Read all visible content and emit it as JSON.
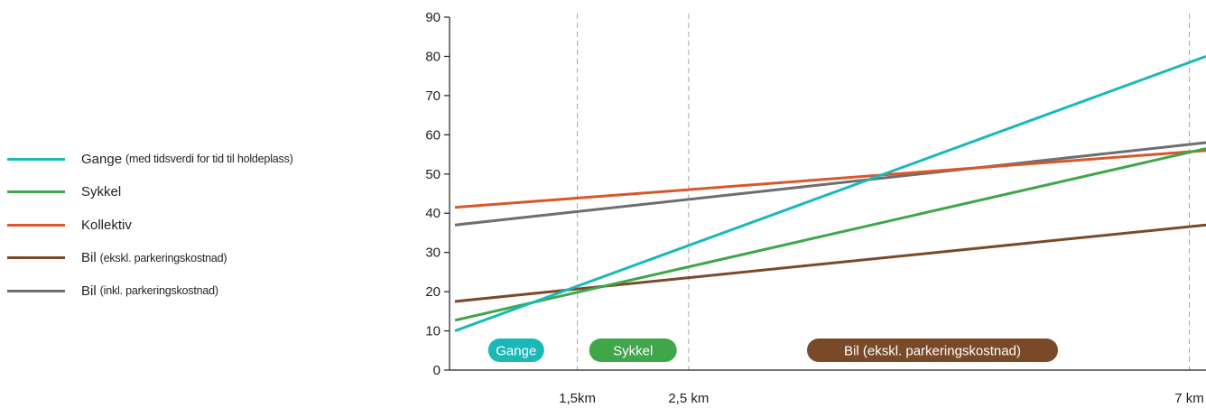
{
  "chart_data": {
    "type": "line",
    "x_unit": "km",
    "ylim": [
      0,
      90
    ],
    "yticks": [
      0,
      10,
      20,
      30,
      40,
      50,
      60,
      70,
      80,
      90
    ],
    "grid": false,
    "legend_placement": "left",
    "series": [
      {
        "name": "Gange",
        "note": "(med tidsverdi for tid til holdeplass)",
        "color": "#1bb8b8",
        "points": [
          [
            0.4,
            10
          ],
          [
            7.15,
            80
          ]
        ]
      },
      {
        "name": "Sykkel",
        "note": "",
        "color": "#3fa64a",
        "points": [
          [
            0.4,
            12.7
          ],
          [
            7.15,
            56.5
          ]
        ]
      },
      {
        "name": "Kollektiv",
        "note": "",
        "color": "#d9572b",
        "points": [
          [
            0.4,
            41.5
          ],
          [
            7.15,
            56
          ]
        ]
      },
      {
        "name": "Bil",
        "note": "(ekskl. parkeringskostnad)",
        "color": "#7a4a28",
        "points": [
          [
            0.4,
            17.5
          ],
          [
            7.15,
            37
          ]
        ]
      },
      {
        "name": "Bil",
        "note": "(inkl. parkeringskostnad)",
        "color": "#6d6e71",
        "points": [
          [
            0.4,
            37
          ],
          [
            7.15,
            58
          ]
        ]
      }
    ],
    "x_markers": [
      {
        "x": 1.5,
        "label": "1,5km"
      },
      {
        "x": 2.5,
        "label": "2,5 km"
      },
      {
        "x": 7.0,
        "label": "7 km"
      }
    ],
    "zones": [
      {
        "label": "Gange",
        "color": "#1bb8b8",
        "x_start": 0.4,
        "x_end": 1.5
      },
      {
        "label": "Sykkel",
        "color": "#3fa64a",
        "x_start": 1.5,
        "x_end": 2.5
      },
      {
        "label": "Bil (ekskl. parkeringskostnad)",
        "color": "#7a4a28",
        "x_start": 2.5,
        "x_end": 7.0
      }
    ]
  }
}
